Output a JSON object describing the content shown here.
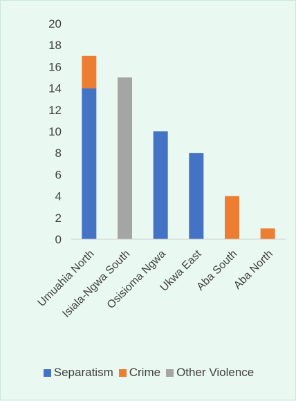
{
  "chart_data": {
    "type": "bar",
    "stacked": true,
    "categories": [
      "Umuahia North",
      "Isiala-Ngwa South",
      "Osisioma Ngwa",
      "Ukwa East",
      "Aba South",
      "Aba North"
    ],
    "series": [
      {
        "name": "Separatism",
        "color": "#4472c4",
        "values": [
          14,
          0,
          10,
          8,
          0,
          0
        ]
      },
      {
        "name": "Crime",
        "color": "#ed7d31",
        "values": [
          3,
          0,
          0,
          0,
          4,
          1
        ]
      },
      {
        "name": "Other Violence",
        "color": "#a5a5a5",
        "values": [
          0,
          15,
          0,
          0,
          0,
          0
        ]
      }
    ],
    "yticks": [
      0,
      2,
      4,
      6,
      8,
      10,
      12,
      14,
      16,
      18,
      20
    ],
    "ylim": [
      0,
      20
    ],
    "grid": false,
    "legend_position": "bottom",
    "title": "",
    "xlabel": "",
    "ylabel": ""
  }
}
